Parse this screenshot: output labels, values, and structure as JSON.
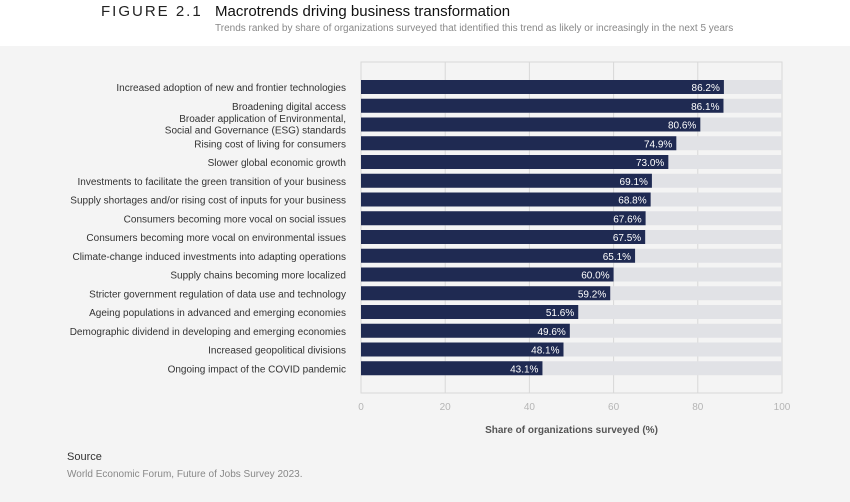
{
  "header": {
    "figure_label": "FIGURE 2.1",
    "title": "Macrotrends driving business transformation",
    "subtitle": "Trends ranked by share of organizations surveyed that identified this trend as likely or increasingly in the next 5 years"
  },
  "chart_data": {
    "type": "bar",
    "orientation": "horizontal",
    "categories": [
      "Increased adoption of new and frontier technologies",
      "Broadening digital access",
      "Broader application of Environmental,\nSocial and Governance (ESG) standards",
      "Rising cost of living for consumers",
      "Slower global economic growth",
      "Investments to facilitate the green transition of your business",
      "Supply shortages and/or rising cost of inputs for your business",
      "Consumers becoming more vocal on social issues",
      "Consumers becoming more vocal on environmental issues",
      "Climate-change induced investments into adapting operations",
      "Supply chains becoming more localized",
      "Stricter government regulation of data use and technology",
      "Ageing populations in advanced and emerging economies",
      "Demographic dividend in developing and emerging economies",
      "Increased geopolitical divisions",
      "Ongoing impact of the COVID pandemic"
    ],
    "values": [
      86.2,
      86.1,
      80.6,
      74.9,
      73.0,
      69.1,
      68.8,
      67.6,
      67.5,
      65.1,
      60.0,
      59.2,
      51.6,
      49.6,
      48.1,
      43.1
    ],
    "data_labels": [
      "86.2%",
      "86.1%",
      "80.6%",
      "74.9%",
      "73.0%",
      "69.1%",
      "68.8%",
      "67.6%",
      "67.5%",
      "65.1%",
      "60.0%",
      "59.2%",
      "51.6%",
      "49.6%",
      "48.1%",
      "43.1%"
    ],
    "xlabel": "Share of organizations surveyed (%)",
    "xlim": [
      0,
      100
    ],
    "xticks": [
      "0",
      "20",
      "40",
      "60",
      "80",
      "100"
    ],
    "grid": true,
    "colors": {
      "bar": "#1f2a52",
      "track": "#e1e2e6",
      "grid": "#d8d8d8"
    }
  },
  "source": {
    "heading": "Source",
    "text": "World Economic Forum, Future of Jobs Survey 2023."
  }
}
